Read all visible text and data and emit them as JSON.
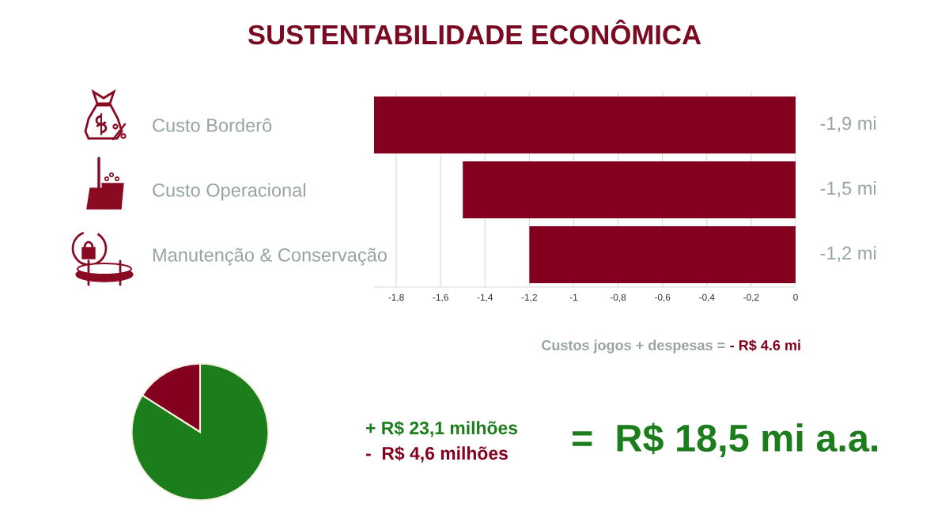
{
  "chart_data": [
    {
      "type": "bar",
      "orientation": "horizontal",
      "title": "SUSTENTABILIDADE ECONÔMICA",
      "categories": [
        "Custo Borderô",
        "Custo Operacional",
        "Manutenção & Conservação"
      ],
      "values": [
        -1.9,
        -1.5,
        -1.2
      ],
      "value_labels": [
        "-1,9 mi",
        "-1,5 mi",
        "-1,2 mi"
      ],
      "color": "#83001f",
      "xlim": [
        -1.9,
        0
      ],
      "xticks": [
        {
          "value": -1.8,
          "label": "-1,8"
        },
        {
          "value": -1.6,
          "label": "-1,6"
        },
        {
          "value": -1.4,
          "label": "-1,4"
        },
        {
          "value": -1.2,
          "label": "-1,2"
        },
        -1,
        {
          "value": -0.8,
          "label": "-0,8"
        },
        {
          "value": -0.6,
          "label": "-0,6"
        },
        {
          "value": -0.4,
          "label": "-0,4"
        },
        {
          "value": -0.2,
          "label": "-0,2"
        },
        0
      ],
      "grid": "x",
      "annotations": [
        "Custos jogos + despesas =",
        "- R$ 4.6 mi"
      ]
    },
    {
      "type": "pie",
      "categories": [
        null,
        null
      ],
      "values": [
        84,
        16
      ],
      "colors": [
        "#1c7d1c",
        "#83001f"
      ],
      "annotations": [
        "+ R$ 23,1 milhões",
        "-  R$ 4,6 milhões",
        "=  R$ 18,5 mi a.a."
      ]
    }
  ]
}
